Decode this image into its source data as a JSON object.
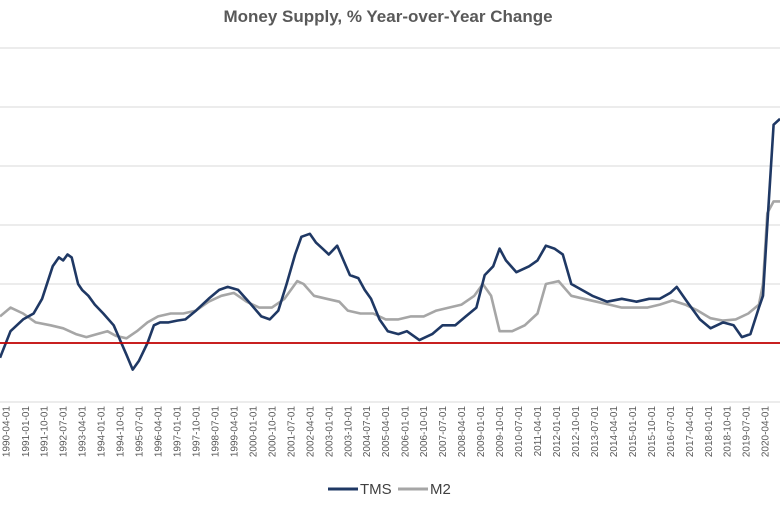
{
  "chart_data": {
    "type": "line",
    "title": "Money Supply, % Year-over-Year Change",
    "xlabel": "",
    "ylabel": "",
    "ylim": [
      -10,
      50
    ],
    "y_gridlines": [
      -10,
      0,
      10,
      20,
      30,
      40,
      50
    ],
    "y_tick_labels_visible": false,
    "grid": "horizontal",
    "legend_position": "bottom",
    "reference_line": {
      "value": 0,
      "color": "#c00000"
    },
    "x_range": [
      "1990-01-01",
      "2020-11-01"
    ],
    "x_tick_labels": [
      "1990-04-01",
      "1991-01-01",
      "1991-10-01",
      "1992-07-01",
      "1993-04-01",
      "1994-01-01",
      "1994-10-01",
      "1995-07-01",
      "1996-04-01",
      "1997-01-01",
      "1997-10-01",
      "1998-07-01",
      "1999-04-01",
      "2000-01-01",
      "2000-10-01",
      "2001-07-01",
      "2002-04-01",
      "2003-01-01",
      "2003-10-01",
      "2004-07-01",
      "2005-04-01",
      "2006-01-01",
      "2006-10-01",
      "2007-07-01",
      "2008-04-01",
      "2009-01-01",
      "2009-10-01",
      "2010-07-01",
      "2011-04-01",
      "2012-01-01",
      "2012-10-01",
      "2013-07-01",
      "2014-04-01",
      "2015-01-01",
      "2015-10-01",
      "2016-07-01",
      "2017-04-01",
      "2018-01-01",
      "2018-10-01",
      "2019-07-01",
      "2020-04-01"
    ],
    "series": [
      {
        "name": "TMS",
        "color": "#1f3864",
        "points": [
          [
            "1990-01-01",
            -2.5
          ],
          [
            "1990-06-01",
            2
          ],
          [
            "1990-12-01",
            4
          ],
          [
            "1991-05-01",
            5
          ],
          [
            "1991-09-01",
            7.5
          ],
          [
            "1992-02-01",
            13
          ],
          [
            "1992-05-01",
            14.5
          ],
          [
            "1992-07-01",
            14
          ],
          [
            "1992-09-01",
            15
          ],
          [
            "1992-11-01",
            14.5
          ],
          [
            "1993-02-01",
            10
          ],
          [
            "1993-04-01",
            9
          ],
          [
            "1993-07-01",
            8
          ],
          [
            "1993-10-01",
            6.5
          ],
          [
            "1994-02-01",
            5
          ],
          [
            "1994-07-01",
            3
          ],
          [
            "1994-10-01",
            0.5
          ],
          [
            "1995-01-01",
            -2
          ],
          [
            "1995-04-01",
            -4.5
          ],
          [
            "1995-07-01",
            -3
          ],
          [
            "1995-11-01",
            0
          ],
          [
            "1996-02-01",
            3
          ],
          [
            "1996-05-01",
            3.5
          ],
          [
            "1996-09-01",
            3.5
          ],
          [
            "1997-01-01",
            3.8
          ],
          [
            "1997-05-01",
            4
          ],
          [
            "1997-10-01",
            5.5
          ],
          [
            "1998-04-01",
            7.5
          ],
          [
            "1998-09-01",
            9
          ],
          [
            "1999-01-01",
            9.5
          ],
          [
            "1999-06-01",
            9
          ],
          [
            "1999-11-01",
            7
          ],
          [
            "2000-05-01",
            4.5
          ],
          [
            "2000-09-01",
            4
          ],
          [
            "2001-01-01",
            5.5
          ],
          [
            "2001-05-01",
            10
          ],
          [
            "2001-09-01",
            15
          ],
          [
            "2001-12-01",
            18
          ],
          [
            "2002-04-01",
            18.5
          ],
          [
            "2002-07-01",
            17
          ],
          [
            "2002-10-01",
            16
          ],
          [
            "2003-01-01",
            15
          ],
          [
            "2003-05-01",
            16.5
          ],
          [
            "2003-08-01",
            14
          ],
          [
            "2003-11-01",
            11.5
          ],
          [
            "2004-03-01",
            11
          ],
          [
            "2004-06-01",
            9
          ],
          [
            "2004-09-01",
            7.5
          ],
          [
            "2005-01-01",
            4
          ],
          [
            "2005-05-01",
            2
          ],
          [
            "2005-10-01",
            1.5
          ],
          [
            "2006-02-01",
            2
          ],
          [
            "2006-08-01",
            0.5
          ],
          [
            "2007-02-01",
            1.5
          ],
          [
            "2007-07-01",
            3
          ],
          [
            "2008-01-01",
            3
          ],
          [
            "2008-06-01",
            4.5
          ],
          [
            "2008-11-01",
            6
          ],
          [
            "2009-03-01",
            11.5
          ],
          [
            "2009-07-01",
            13
          ],
          [
            "2009-10-01",
            16
          ],
          [
            "2010-01-01",
            14
          ],
          [
            "2010-06-01",
            12
          ],
          [
            "2010-12-01",
            13
          ],
          [
            "2011-04-01",
            14
          ],
          [
            "2011-08-01",
            16.5
          ],
          [
            "2011-12-01",
            16
          ],
          [
            "2012-04-01",
            15
          ],
          [
            "2012-08-01",
            10
          ],
          [
            "2013-01-01",
            9
          ],
          [
            "2013-06-01",
            8
          ],
          [
            "2014-01-01",
            7
          ],
          [
            "2014-08-01",
            7.5
          ],
          [
            "2015-03-01",
            7
          ],
          [
            "2015-09-01",
            7.5
          ],
          [
            "2016-02-01",
            7.5
          ],
          [
            "2016-07-01",
            8.5
          ],
          [
            "2016-10-01",
            9.5
          ],
          [
            "2017-03-01",
            7
          ],
          [
            "2017-09-01",
            4
          ],
          [
            "2018-02-01",
            2.5
          ],
          [
            "2018-08-01",
            3.5
          ],
          [
            "2019-01-01",
            3
          ],
          [
            "2019-05-01",
            1
          ],
          [
            "2019-09-01",
            1.5
          ],
          [
            "2020-01-01",
            6
          ],
          [
            "2020-03-01",
            8
          ],
          [
            "2020-05-01",
            20
          ],
          [
            "2020-08-01",
            37
          ],
          [
            "2020-11-01",
            38
          ]
        ]
      },
      {
        "name": "M2",
        "color": "#a6a6a6",
        "points": [
          [
            "1990-01-01",
            4.5
          ],
          [
            "1990-06-01",
            6
          ],
          [
            "1990-12-01",
            5
          ],
          [
            "1991-06-01",
            3.5
          ],
          [
            "1992-01-01",
            3
          ],
          [
            "1992-07-01",
            2.5
          ],
          [
            "1993-01-01",
            1.5
          ],
          [
            "1993-06-01",
            1
          ],
          [
            "1993-11-01",
            1.5
          ],
          [
            "1994-04-01",
            2
          ],
          [
            "1994-08-01",
            1.2
          ],
          [
            "1995-01-01",
            0.8
          ],
          [
            "1995-06-01",
            2
          ],
          [
            "1995-11-01",
            3.5
          ],
          [
            "1996-04-01",
            4.5
          ],
          [
            "1996-10-01",
            5
          ],
          [
            "1997-04-01",
            5
          ],
          [
            "1997-10-01",
            5.5
          ],
          [
            "1998-04-01",
            7
          ],
          [
            "1998-10-01",
            8
          ],
          [
            "1999-04-01",
            8.5
          ],
          [
            "1999-10-01",
            7
          ],
          [
            "2000-04-01",
            6
          ],
          [
            "2000-10-01",
            6
          ],
          [
            "2001-04-01",
            7.5
          ],
          [
            "2001-10-01",
            10.5
          ],
          [
            "2002-01-01",
            10
          ],
          [
            "2002-06-01",
            8
          ],
          [
            "2002-12-01",
            7.5
          ],
          [
            "2003-06-01",
            7
          ],
          [
            "2003-10-01",
            5.5
          ],
          [
            "2004-04-01",
            5
          ],
          [
            "2004-10-01",
            5
          ],
          [
            "2005-04-01",
            4
          ],
          [
            "2005-10-01",
            4
          ],
          [
            "2006-04-01",
            4.5
          ],
          [
            "2006-10-01",
            4.5
          ],
          [
            "2007-04-01",
            5.5
          ],
          [
            "2007-10-01",
            6
          ],
          [
            "2008-04-01",
            6.5
          ],
          [
            "2008-10-01",
            8
          ],
          [
            "2009-02-01",
            10
          ],
          [
            "2009-06-01",
            8
          ],
          [
            "2009-10-01",
            2
          ],
          [
            "2010-04-01",
            2
          ],
          [
            "2010-10-01",
            3
          ],
          [
            "2011-04-01",
            5
          ],
          [
            "2011-08-01",
            10
          ],
          [
            "2012-02-01",
            10.5
          ],
          [
            "2012-08-01",
            8
          ],
          [
            "2013-02-01",
            7.5
          ],
          [
            "2013-08-01",
            7
          ],
          [
            "2014-02-01",
            6.5
          ],
          [
            "2014-08-01",
            6
          ],
          [
            "2015-02-01",
            6
          ],
          [
            "2015-08-01",
            6
          ],
          [
            "2016-02-01",
            6.5
          ],
          [
            "2016-08-01",
            7.2
          ],
          [
            "2017-02-01",
            6.5
          ],
          [
            "2017-08-01",
            5.5
          ],
          [
            "2018-02-01",
            4.2
          ],
          [
            "2018-08-01",
            3.8
          ],
          [
            "2019-02-01",
            4
          ],
          [
            "2019-08-01",
            5
          ],
          [
            "2020-01-01",
            6.5
          ],
          [
            "2020-03-01",
            10
          ],
          [
            "2020-05-01",
            22
          ],
          [
            "2020-08-01",
            24
          ],
          [
            "2020-11-01",
            24
          ]
        ]
      }
    ]
  }
}
